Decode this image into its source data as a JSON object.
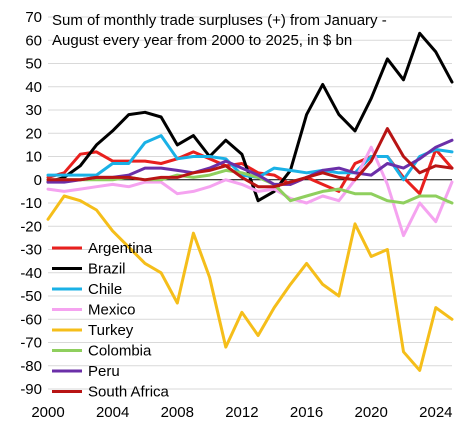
{
  "chart_data": {
    "type": "line",
    "title_lines": [
      "Sum of monthly trade surpluses (+) from January -",
      "August every year from 2000 to 2025, in $ bn"
    ],
    "xlabel": "",
    "ylabel": "",
    "xlim": [
      2000,
      2025
    ],
    "ylim": [
      -90,
      70
    ],
    "x_ticks": [
      2000,
      2004,
      2008,
      2012,
      2016,
      2020,
      2024
    ],
    "y_ticks": [
      70,
      60,
      50,
      40,
      30,
      20,
      10,
      0,
      -10,
      -20,
      -30,
      -40,
      -50,
      -60,
      -70,
      -80,
      -90
    ],
    "grid": true,
    "legend_position": "bottom-left",
    "x": [
      2000,
      2001,
      2002,
      2003,
      2004,
      2005,
      2006,
      2007,
      2008,
      2009,
      2010,
      2011,
      2012,
      2013,
      2014,
      2015,
      2016,
      2017,
      2018,
      2019,
      2020,
      2021,
      2022,
      2023,
      2024,
      2025
    ],
    "series": [
      {
        "name": "Argentina",
        "color": "#e8201e",
        "values": [
          1,
          3,
          11,
          12,
          8,
          8,
          8,
          7,
          9,
          12,
          9,
          6,
          7,
          3,
          2,
          -2,
          1,
          -2,
          -5,
          7,
          10,
          10,
          1,
          -6,
          13,
          5
        ]
      },
      {
        "name": "Brazil",
        "color": "#000000",
        "values": [
          -1,
          1,
          6,
          15,
          21,
          28,
          29,
          27,
          15,
          19,
          10,
          17,
          11,
          -9,
          -5,
          4,
          28,
          41,
          28,
          21,
          35,
          52,
          43,
          63,
          55,
          42
        ]
      },
      {
        "name": "Chile",
        "color": "#1ab1e6",
        "values": [
          2,
          2,
          2,
          2,
          7,
          7,
          16,
          19,
          9,
          10,
          10,
          9,
          2,
          1,
          5,
          4,
          3,
          4,
          3,
          3,
          10,
          10,
          0,
          10,
          13,
          12
        ]
      },
      {
        "name": "Mexico",
        "color": "#f5a3f0",
        "values": [
          -4,
          -5,
          -4,
          -3,
          -2,
          -3,
          -1,
          -1,
          -6,
          -5,
          -3,
          0,
          -2,
          -5,
          -4,
          -8,
          -10,
          -7,
          -9,
          0,
          14,
          -2,
          -24,
          -10,
          -18,
          -1
        ]
      },
      {
        "name": "Turkey",
        "color": "#f5be1a",
        "values": [
          -17,
          -7,
          -9,
          -13,
          -22,
          -29,
          -36,
          -40,
          -53,
          -23,
          -42,
          -72,
          -57,
          -67,
          -55,
          -45,
          -36,
          -45,
          -50,
          -19,
          -33,
          -30,
          -74,
          -82,
          -55,
          -60
        ]
      },
      {
        "name": "Colombia",
        "color": "#8fcf5e",
        "values": [
          0,
          0,
          0,
          0,
          0,
          1,
          0,
          0,
          2,
          1,
          2,
          4,
          3,
          1,
          -2,
          -9,
          -7,
          -5,
          -4,
          -6,
          -6,
          -9,
          -10,
          -7,
          -7,
          -10
        ]
      },
      {
        "name": "Peru",
        "color": "#6b2fa8",
        "values": [
          -1,
          -1,
          0,
          1,
          1,
          2,
          5,
          5,
          4,
          3,
          5,
          8,
          5,
          2,
          -2,
          -2,
          1,
          4,
          5,
          3,
          2,
          7,
          5,
          9,
          14,
          17
        ]
      },
      {
        "name": "South Africa",
        "color": "#b81414",
        "values": [
          0,
          0,
          0,
          1,
          1,
          1,
          0,
          1,
          1,
          3,
          4,
          6,
          1,
          -3,
          -3,
          -1,
          1,
          3,
          1,
          0,
          8,
          22,
          10,
          3,
          6,
          5
        ]
      }
    ]
  }
}
